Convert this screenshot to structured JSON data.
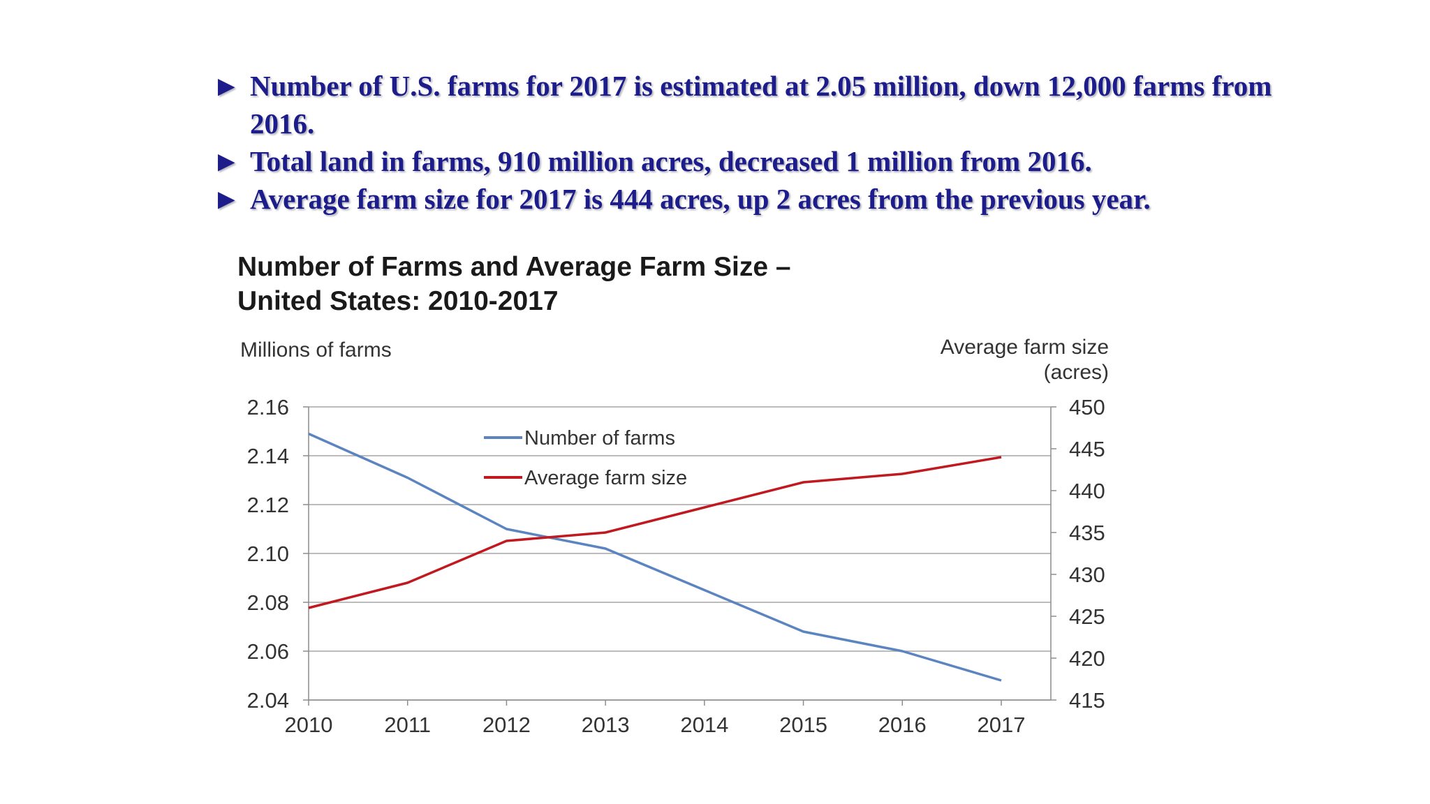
{
  "bullets": [
    {
      "arrow": "►",
      "text": "Number of U.S. farms for 2017 is estimated at 2.05 million, down 12,000 farms from 2016."
    },
    {
      "arrow": "►",
      "text": "Total land in farms, 910 million acres, decreased 1 million from 2016."
    },
    {
      "arrow": "►",
      "text": "Average farm size for 2017 is 444 acres, up 2 acres from the previous year."
    }
  ],
  "chart_data": {
    "type": "line",
    "title_line1": "Number of Farms and Average Farm Size –",
    "title_line2": "United States: 2010-2017",
    "ylabel_left": "Millions of farms",
    "ylabel_right_line1": "Average farm size",
    "ylabel_right_line2": "(acres)",
    "categories": [
      "2010",
      "2011",
      "2012",
      "2013",
      "2014",
      "2015",
      "2016",
      "2017"
    ],
    "ylim_left": [
      2.04,
      2.16
    ],
    "ylim_right": [
      415,
      450
    ],
    "yticks_left": [
      "2.16",
      "2.14",
      "2.12",
      "2.10",
      "2.08",
      "2.06",
      "2.04"
    ],
    "yticks_right": [
      "450",
      "445",
      "440",
      "435",
      "430",
      "425",
      "420",
      "415"
    ],
    "grid": true,
    "legend_position": "top-center",
    "series": [
      {
        "name": "Number of farms",
        "axis": "left",
        "color": "#5b84c1",
        "values": [
          2.149,
          2.131,
          2.11,
          2.102,
          2.085,
          2.068,
          2.06,
          2.048
        ]
      },
      {
        "name": "Average farm size",
        "axis": "right",
        "color": "#c0191f",
        "values": [
          426,
          429,
          434,
          435,
          438,
          441,
          442,
          444
        ]
      }
    ]
  }
}
